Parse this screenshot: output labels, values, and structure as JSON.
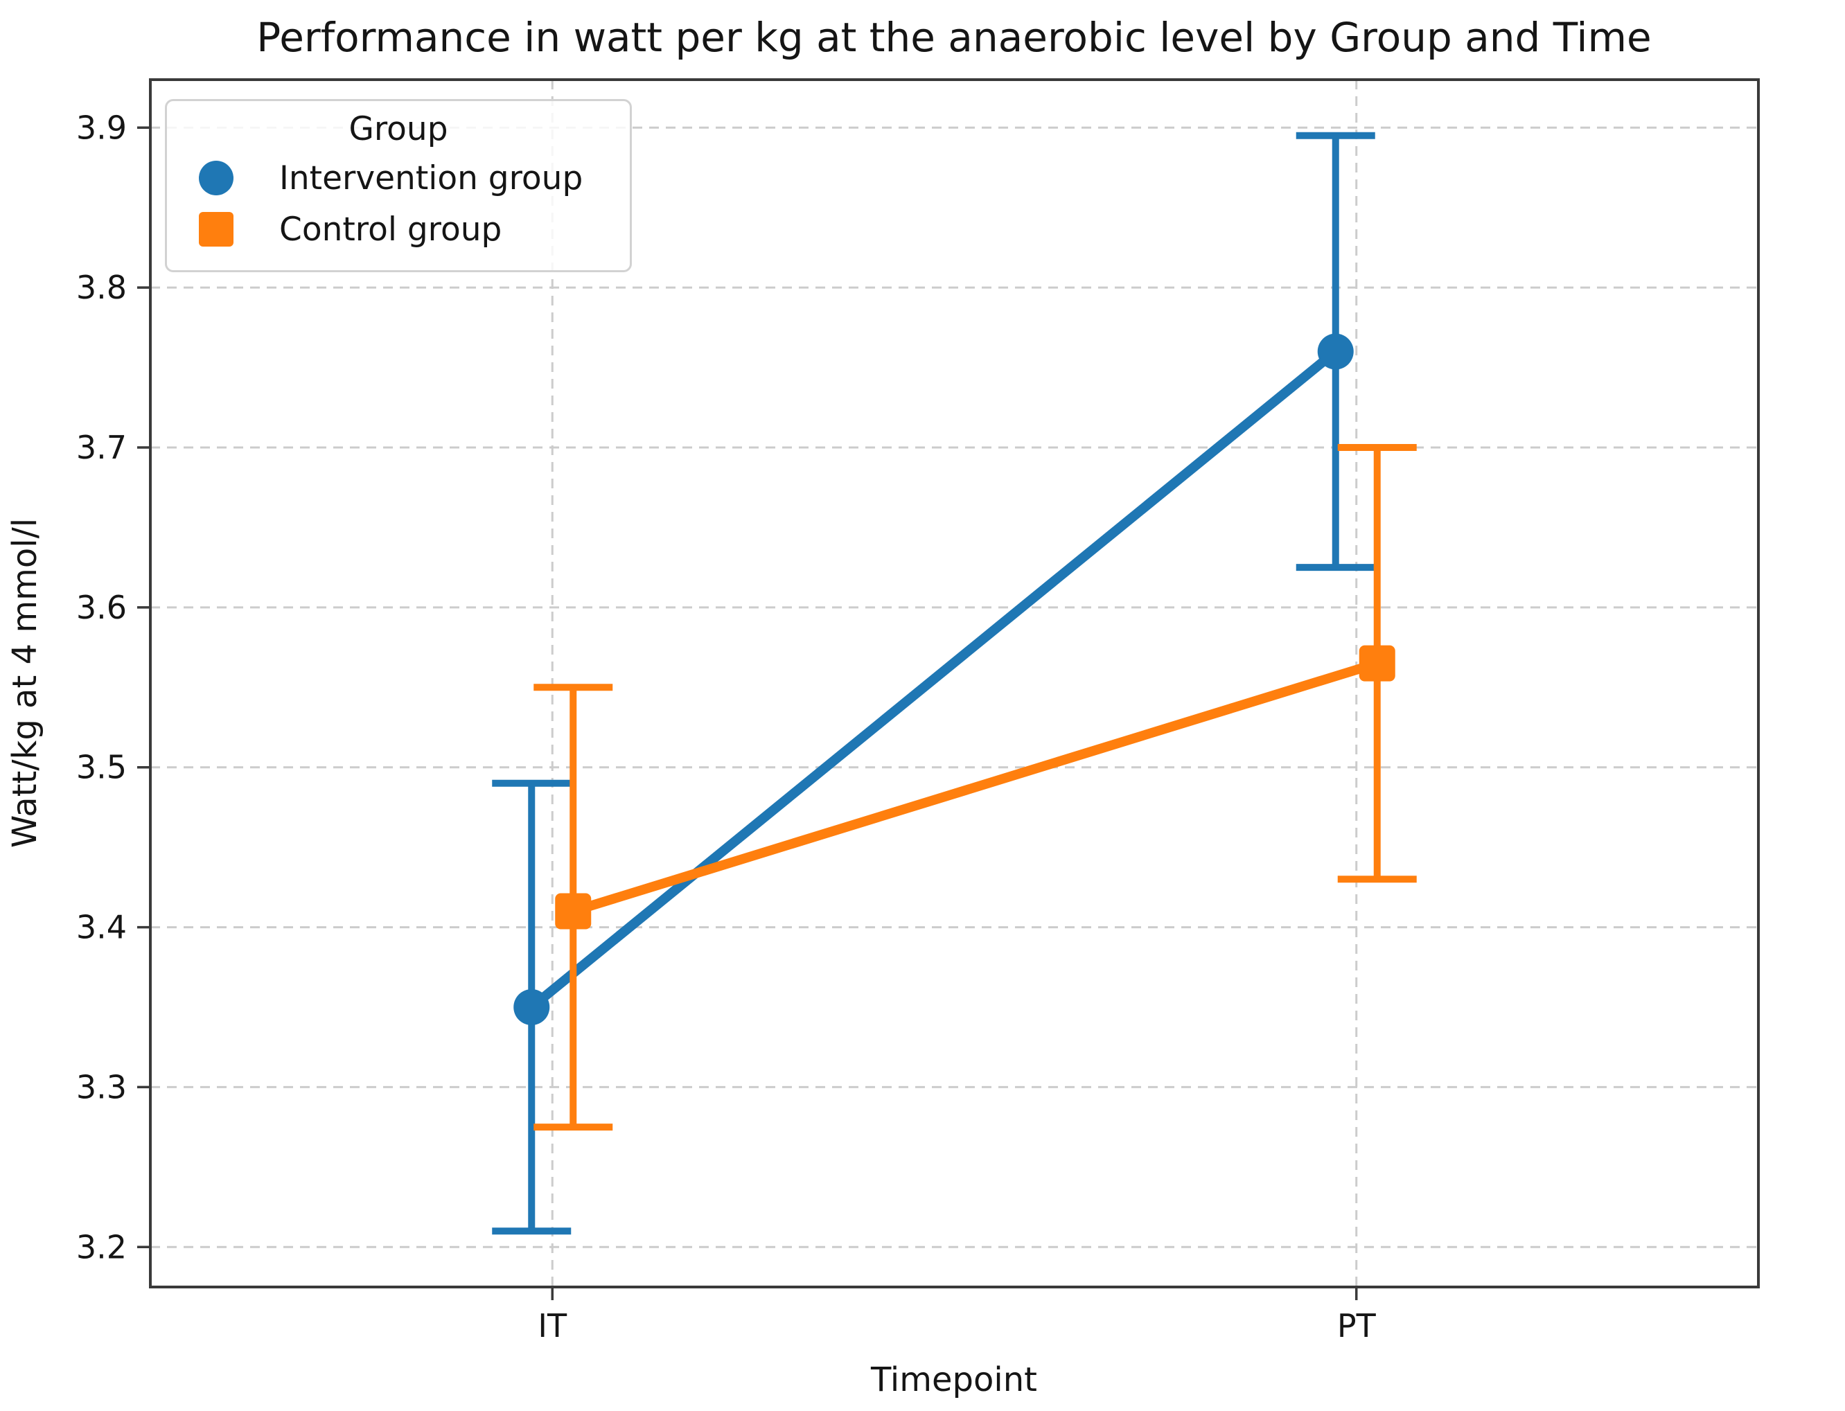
{
  "figure": {
    "title": "Performance in watt per kg at the anaerobic level by Group and Time"
  },
  "chart_data": {
    "type": "line",
    "title": "Performance in watt per kg at the anaerobic level by Group and Time",
    "xlabel": "Timepoint",
    "ylabel": "Watt/kg at 4 mmol/l",
    "categories": [
      "IT",
      "PT"
    ],
    "yticks": [
      3.2,
      3.3,
      3.4,
      3.5,
      3.6,
      3.7,
      3.8,
      3.9
    ],
    "ylim": [
      3.175,
      3.93
    ],
    "grid": true,
    "legend": {
      "title": "Group",
      "position": "upper-left"
    },
    "series": [
      {
        "name": "Intervention group",
        "color": "#1f77b4",
        "marker": "circle",
        "values": [
          3.35,
          3.76
        ],
        "err_low": [
          3.21,
          3.625
        ],
        "err_high": [
          3.49,
          3.895
        ]
      },
      {
        "name": "Control group",
        "color": "#ff7f0e",
        "marker": "square",
        "values": [
          3.41,
          3.565
        ],
        "err_low": [
          3.275,
          3.43
        ],
        "err_high": [
          3.55,
          3.7
        ]
      }
    ]
  }
}
